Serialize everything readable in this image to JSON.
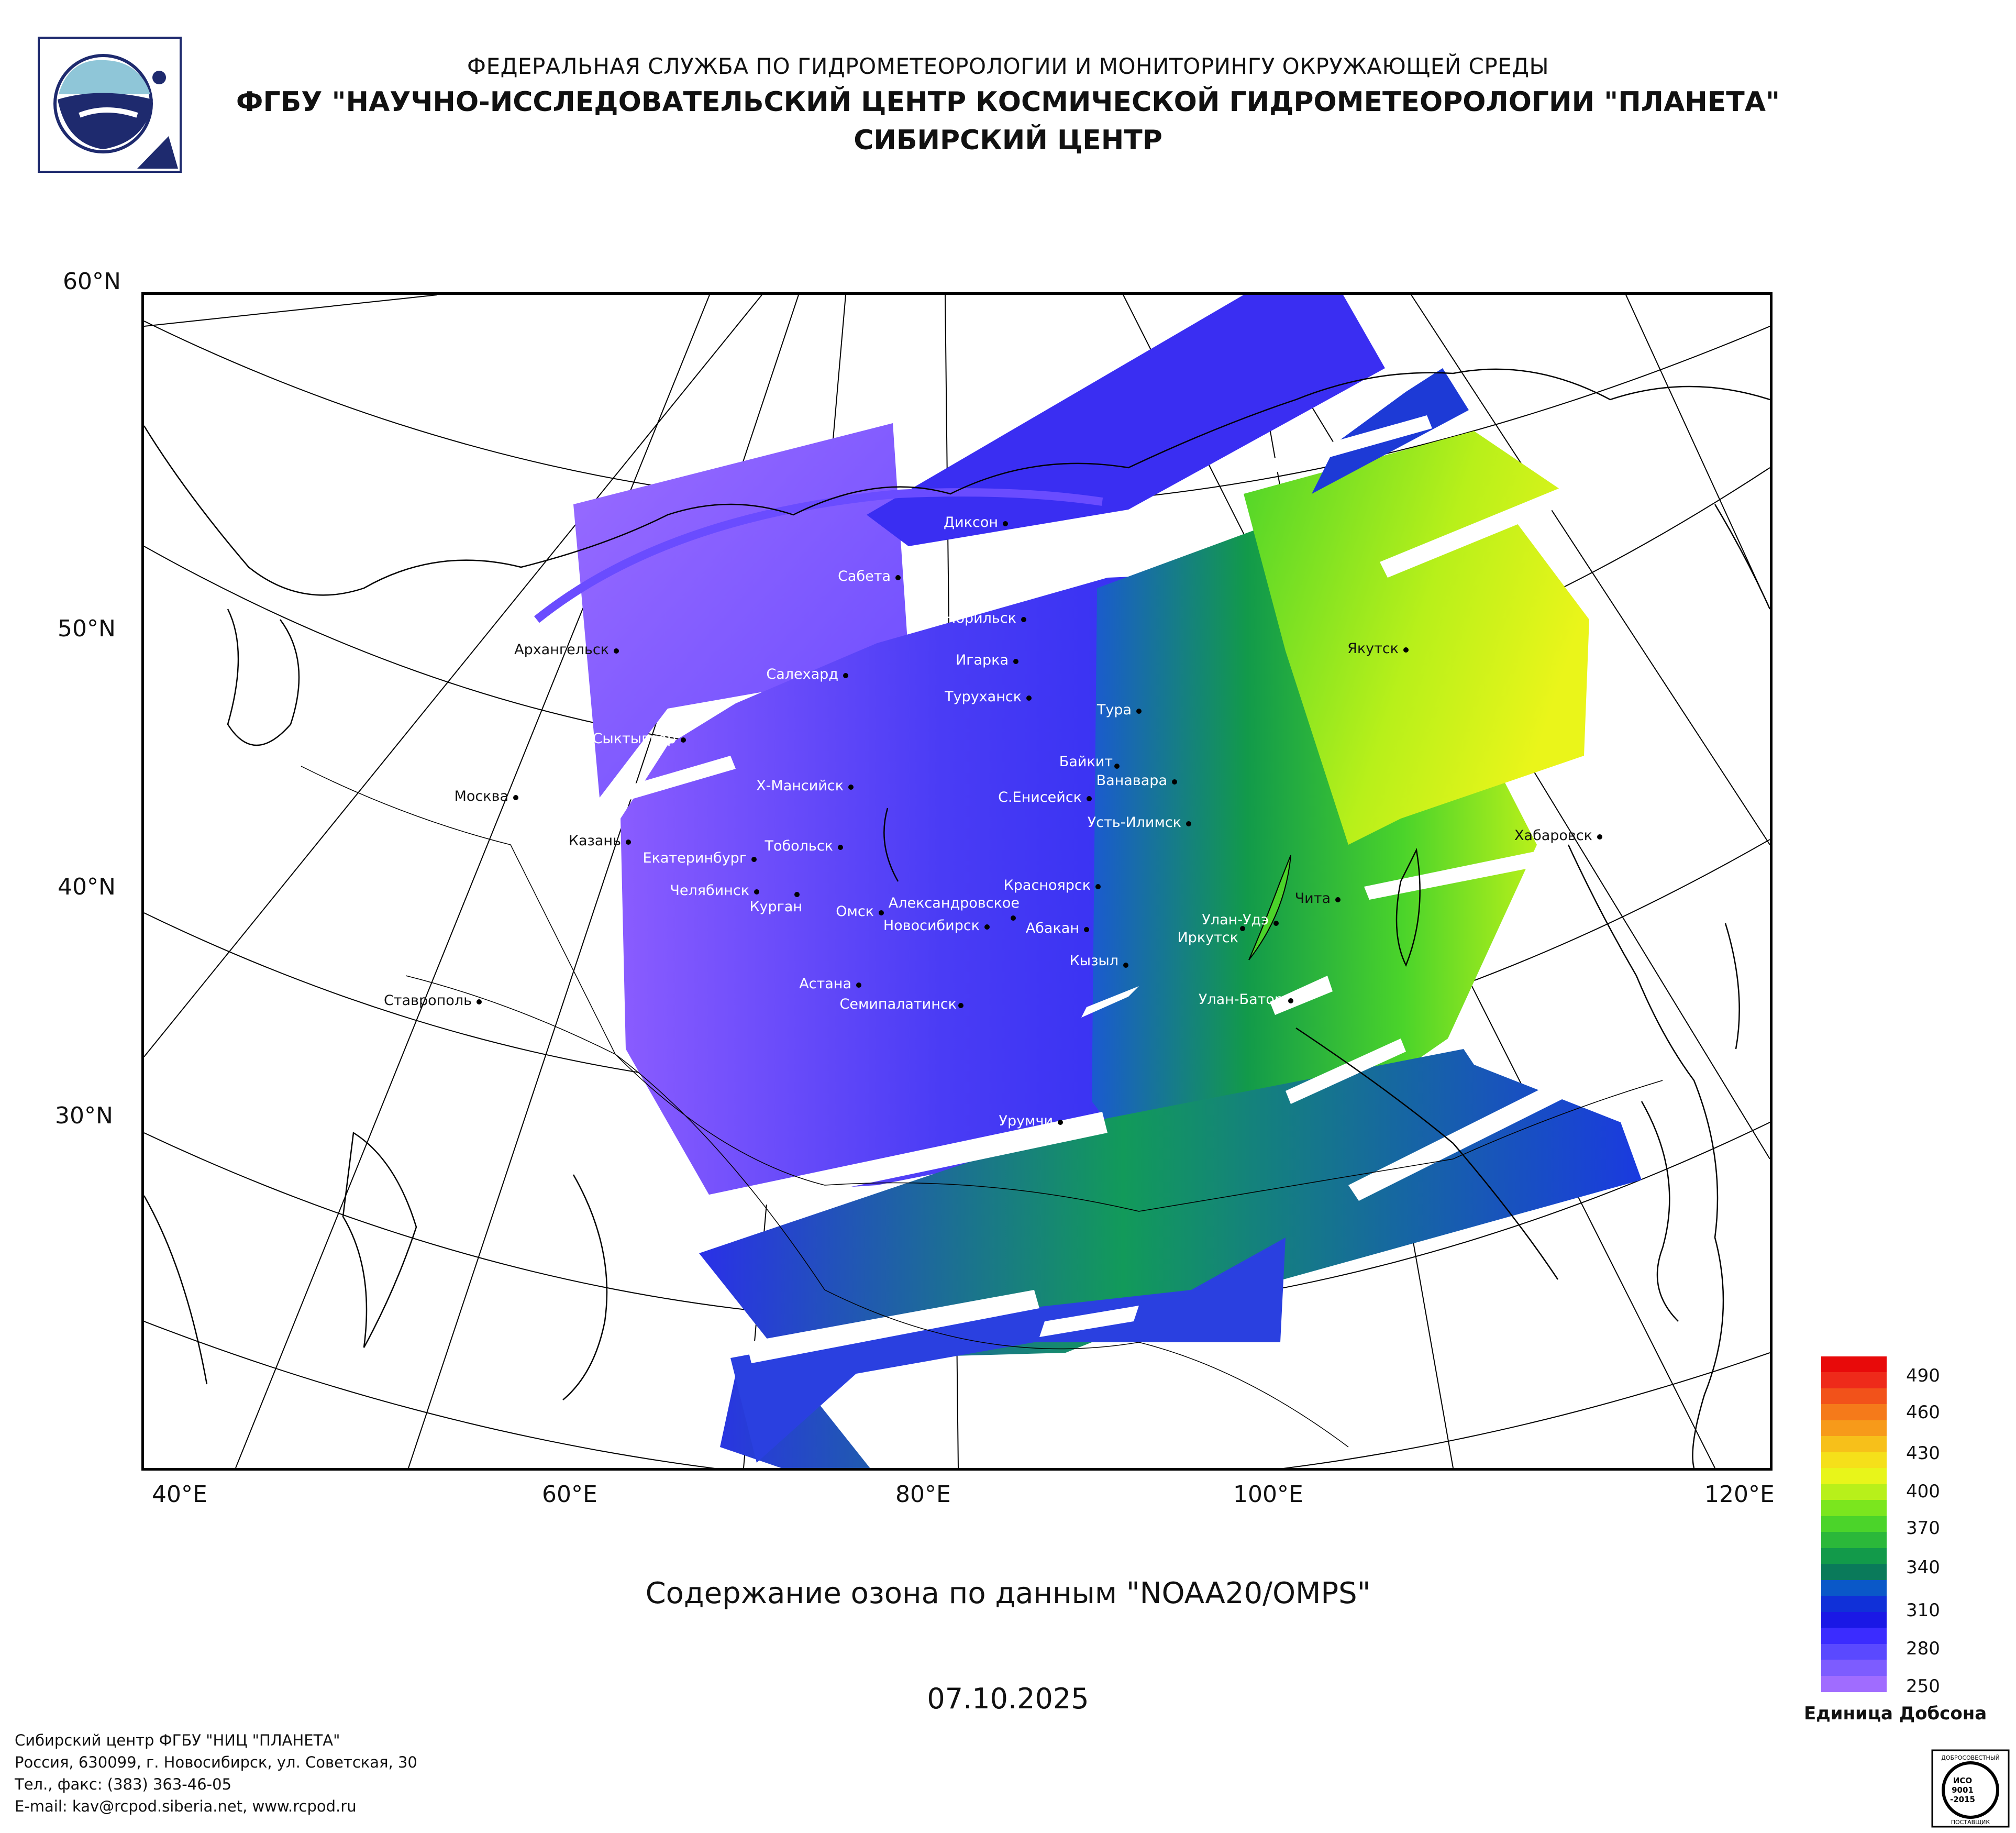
{
  "header": {
    "line1": "ФЕДЕРАЛЬНАЯ СЛУЖБА ПО ГИДРОМЕТЕОРОЛОГИИ И МОНИТОРИНГУ ОКРУЖАЮЩЕЙ СРЕДЫ",
    "line2": "ФГБУ \"НАУЧНО-ИССЛЕДОВАТЕЛЬСКИЙ ЦЕНТР КОСМИЧЕСКОЙ ГИДРОМЕТЕОРОЛОГИИ \"ПЛАНЕТА\"",
    "line3": "СИБИРСКИЙ ЦЕНТР"
  },
  "map": {
    "lat_labels": [
      "60°N",
      "50°N",
      "40°N",
      "30°N"
    ],
    "lon_labels": [
      "40°E",
      "60°E",
      "80°E",
      "100°E",
      "120°E"
    ],
    "cities": [
      "Диксон",
      "Сабета",
      "Норильск",
      "Игарка",
      "Салехард",
      "Туруханск",
      "Архангельск",
      "Якутск",
      "Тура",
      "Сыктывкар",
      "Байкит",
      "Ванавара",
      "Х-Мансийск",
      "С.Енисейск",
      "Москва",
      "Усть-Илимск",
      "Хабаровск",
      "Казань",
      "Тобольск",
      "Екатеринбург",
      "Челябинск",
      "Красноярск",
      "Александровское",
      "Чита",
      "Курган",
      "Омск",
      "Улан-Удэ",
      "Новосибирск",
      "Абакан",
      "Иркутск",
      "Кызыл",
      "Астана",
      "Улан-Батор",
      "Ставрополь",
      "Семипалатинск",
      "Урумчи"
    ]
  },
  "caption": "Содержание озона по данным \"NOAA20/OMPS\"",
  "date": "07.10.2025",
  "legend": {
    "ticks": [
      "490",
      "460",
      "430",
      "400",
      "370",
      "340",
      "310",
      "280",
      "250"
    ],
    "unit": "Единица Добсона",
    "colors": [
      "#a06cff",
      "#7d5cff",
      "#5a49ff",
      "#3b2cff",
      "#1a18e6",
      "#1030d8",
      "#0a58c8",
      "#0a7a5a",
      "#129a4a",
      "#2bb83a",
      "#4bd42a",
      "#7be61e",
      "#b8f01a",
      "#e8f51a",
      "#f5e01a",
      "#f7c01a",
      "#f79a1a",
      "#f57a1a",
      "#f2521a",
      "#ee2a1a",
      "#e80a0a"
    ]
  },
  "footer": {
    "org": "Сибирский центр ФГБУ \"НИЦ \"ПЛАНЕТА\"",
    "address": "Россия, 630099, г. Новосибирск, ул. Советская, 30",
    "phone": "Тел., факс: (383) 363-46-05",
    "email": "E-mail: kav@rcpod.siberia.net, www.rcpod.ru"
  },
  "cert": {
    "top": "ДОБРОСОВЕСТНЫЙ",
    "mid": "ИСО",
    "code": "9001",
    "year": "-2015",
    "bottom": "ПОСТАВЩИК"
  }
}
